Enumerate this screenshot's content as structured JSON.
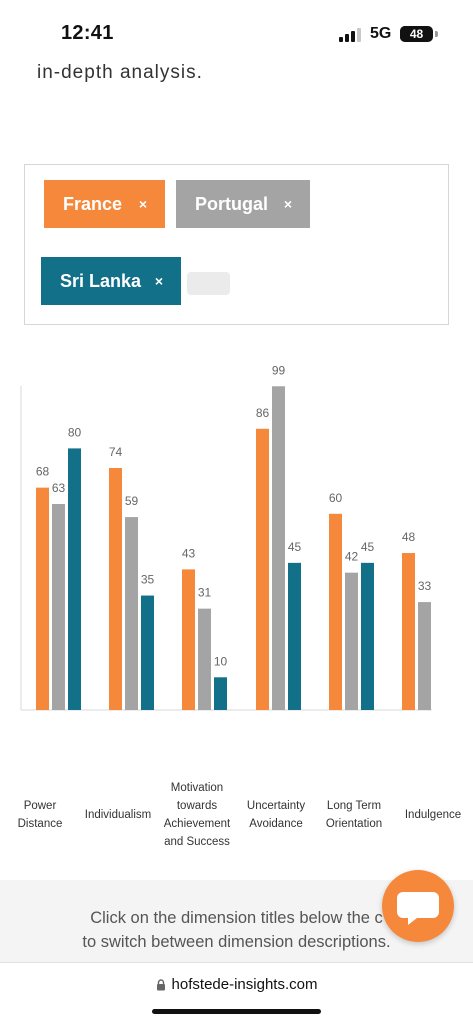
{
  "status_bar": {
    "time": "12:41",
    "network": "5G",
    "battery": "48",
    "battery_level": 0.48
  },
  "intro_text": "in-depth analysis.",
  "countries": [
    {
      "name": "France",
      "remove": "×",
      "color": "#f5883a"
    },
    {
      "name": "Portugal",
      "remove": "×",
      "color": "#a4a4a4"
    },
    {
      "name": "Sri Lanka",
      "remove": "×",
      "color": "#127189"
    }
  ],
  "chart_data": {
    "type": "bar",
    "categories": [
      [
        "Power",
        "Distance"
      ],
      [
        "Individualism"
      ],
      [
        "Motivation",
        "towards",
        "Achievement",
        "and Success"
      ],
      [
        "Uncertainty",
        "Avoidance"
      ],
      [
        "Long Term",
        "Orientation"
      ],
      [
        "Indulgence"
      ]
    ],
    "series": [
      {
        "name": "France",
        "color": "#f5883a",
        "values": [
          68,
          74,
          43,
          86,
          60,
          48
        ]
      },
      {
        "name": "Portugal",
        "color": "#a4a4a4",
        "values": [
          63,
          59,
          31,
          99,
          42,
          33
        ]
      },
      {
        "name": "Sri Lanka",
        "color": "#127189",
        "values": [
          80,
          35,
          10,
          45,
          45,
          null
        ]
      }
    ],
    "ylim": [
      0,
      100
    ],
    "data_labels": true,
    "grid": false,
    "legend": "none"
  },
  "instruction_text": {
    "line1": "Click on the dimension titles below the c",
    "line2": "to switch between dimension descriptions."
  },
  "browser": {
    "url": "hofstede-insights.com",
    "lock_icon": "lock-icon"
  },
  "chat_icon": "chat-bubble-icon"
}
